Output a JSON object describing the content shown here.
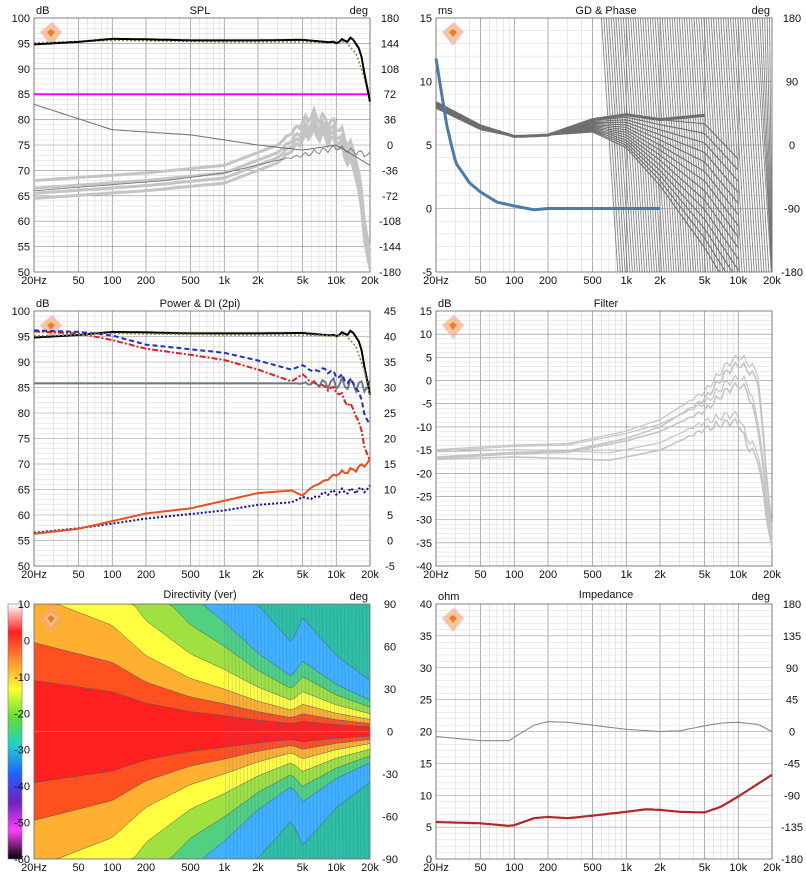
{
  "colors": {
    "grid_major": "#8c8c8c",
    "grid_minor": "#d7d7d7",
    "frame": "#6f6f6f",
    "black": "#000000",
    "olive_dotted": "#8a8a3a",
    "magenta": "#ff00ff",
    "gray_dark": "#6e6e6e",
    "gray_light": "#c4c4c4",
    "blue_gd": "#4a7cab",
    "blue_dash": "#1f2fcf",
    "red_dash": "#e02020",
    "orange": "#e85020",
    "navy_dot": "#101090",
    "slate": "#6a7890",
    "imp_red": "#b02828",
    "imp_gray": "#8a8a8a"
  },
  "freq_ticks": [
    "20Hz",
    "50",
    "100",
    "200",
    "500",
    "1k",
    "2k",
    "5k",
    "10k",
    "20k"
  ],
  "colorbar": {
    "labels": [
      "10",
      "0",
      "-10",
      "-20",
      "-30",
      "-40",
      "-50",
      "-60"
    ],
    "stops": [
      "#ffffff",
      "#ff2020",
      "#ff9030",
      "#ffff30",
      "#60e030",
      "#20d0d0",
      "#2060ff",
      "#7020c0",
      "#ff40ff",
      "#000000"
    ]
  },
  "chart_data": [
    {
      "id": "spl",
      "type": "line",
      "title": "SPL",
      "ylabel_left": "dB",
      "ylabel_right": "deg",
      "x_scale": "log",
      "xlim": [
        20,
        20000
      ],
      "ylim_left": [
        50,
        100
      ],
      "yticks_left": [
        "100",
        "95",
        "90",
        "85",
        "80",
        "75",
        "70",
        "65",
        "60",
        "55",
        "50"
      ],
      "ylim_right": [
        -180,
        180
      ],
      "yticks_right": [
        "180",
        "144",
        "108",
        "72",
        "36",
        "0",
        "-36",
        "-72",
        "-108",
        "-144",
        "-180"
      ],
      "series": [
        {
          "kind": "on-axis",
          "color": "black",
          "x": [
            20,
            50,
            100,
            200,
            500,
            1000,
            2000,
            5000,
            8000,
            10000,
            12000,
            15000,
            18000,
            20000
          ],
          "y": [
            94.8,
            95.3,
            95.9,
            95.8,
            95.6,
            95.6,
            95.6,
            95.7,
            95.3,
            95.2,
            95.7,
            95.6,
            89.5,
            82.8
          ]
        },
        {
          "kind": "reference",
          "color": "olive_dotted",
          "x": [
            20,
            100,
            1000,
            5000,
            8000,
            10000,
            12000,
            15000,
            18000,
            20000
          ],
          "y": [
            95.1,
            95.6,
            95.3,
            95.3,
            95.2,
            95.0,
            95.4,
            93.0,
            88.0,
            83.0
          ]
        },
        {
          "kind": "level",
          "color": "magenta",
          "x": [
            20,
            20000
          ],
          "y": [
            85,
            85
          ]
        }
      ]
    },
    {
      "id": "gd_phase",
      "type": "line",
      "title": "GD & Phase",
      "ylabel_left": "ms",
      "ylabel_right": "deg",
      "x_scale": "log",
      "xlim": [
        20,
        20000
      ],
      "ylim_left": [
        -5,
        15
      ],
      "yticks_left": [
        "15",
        "10",
        "5",
        "0",
        "-5"
      ],
      "ylim_right": [
        -180,
        180
      ],
      "yticks_right": [
        "180",
        "90",
        "0",
        "-90",
        "-180"
      ],
      "series": [
        {
          "kind": "group-delay",
          "color": "blue_gd",
          "x": [
            20,
            25,
            30,
            40,
            50,
            70,
            100,
            150,
            200,
            300,
            500,
            1000,
            2000
          ],
          "y": [
            11.8,
            6.5,
            3.6,
            2.0,
            1.3,
            0.5,
            0.2,
            -0.1,
            0.0,
            0.0,
            0.0,
            0.0,
            0.0
          ]
        },
        {
          "kind": "phase-cluster",
          "color": "gray_dark",
          "x": [
            20,
            50,
            100,
            200,
            500,
            1000,
            2000,
            5000
          ],
          "y": [
            60,
            27,
            12,
            14,
            36,
            43,
            36,
            42
          ]
        }
      ]
    },
    {
      "id": "power_di",
      "type": "line",
      "title": "Power & DI (2pi)",
      "ylabel_left": "dB",
      "x_scale": "log",
      "xlim": [
        20,
        20000
      ],
      "ylim_left": [
        50,
        100
      ],
      "yticks_left": [
        "100",
        "95",
        "90",
        "85",
        "80",
        "75",
        "70",
        "65",
        "60",
        "55",
        "50"
      ],
      "ylim_right": [
        -5,
        45
      ],
      "yticks_right": [
        "45",
        "40",
        "35",
        "30",
        "25",
        "20",
        "15",
        "10",
        "5",
        "0",
        "-5"
      ],
      "series": [
        {
          "kind": "on-axis",
          "color": "black",
          "x": [
            20,
            50,
            100,
            200,
            500,
            1000,
            2000,
            5000,
            8000,
            10000,
            12000,
            15000,
            18000,
            20000
          ],
          "y": [
            94.8,
            95.3,
            95.9,
            95.8,
            95.6,
            95.6,
            95.6,
            95.7,
            95.3,
            95.2,
            95.7,
            95.6,
            89.5,
            82.8
          ]
        },
        {
          "kind": "listening-window",
          "color": "blue_dash",
          "x": [
            20,
            50,
            100,
            200,
            500,
            1000,
            2000,
            4000,
            5000,
            6000,
            8000,
            10000,
            15000,
            20000
          ],
          "y": [
            96.2,
            95.9,
            95.2,
            93.4,
            92.5,
            91.8,
            90.3,
            88.5,
            89.4,
            88.3,
            88.5,
            87.5,
            85.5,
            77.0
          ]
        },
        {
          "kind": "sound-power",
          "color": "red_dash",
          "x": [
            20,
            50,
            100,
            200,
            500,
            1000,
            2000,
            4000,
            5000,
            6000,
            8000,
            10000,
            15000,
            20000
          ],
          "y": [
            96.0,
            95.6,
            94.3,
            92.6,
            91.4,
            90.4,
            88.5,
            86.2,
            87.6,
            86.0,
            85.0,
            84.5,
            80.0,
            70.0
          ]
        },
        {
          "kind": "reference-31",
          "color": "slate",
          "x": [
            20,
            5000,
            10000,
            20000
          ],
          "y": [
            30.8,
            30.8,
            30.8,
            30.2
          ]
        },
        {
          "kind": "di-listening",
          "color": "orange",
          "x": [
            20,
            50,
            100,
            200,
            500,
            1000,
            2000,
            4000,
            5000,
            6000,
            8000,
            10000,
            15000,
            20000
          ],
          "y": [
            1.3,
            2.3,
            3.8,
            5.3,
            6.3,
            7.8,
            9.3,
            9.8,
            8.8,
            10.4,
            11.8,
            13.0,
            14.0,
            15.5
          ]
        },
        {
          "kind": "di-power",
          "color": "navy_dot",
          "x": [
            20,
            50,
            100,
            200,
            500,
            1000,
            2000,
            4000,
            5000,
            6000,
            8000,
            10000,
            15000,
            20000
          ],
          "y": [
            1.5,
            2.4,
            3.3,
            4.3,
            5.2,
            5.9,
            7.0,
            7.5,
            8.5,
            8.2,
            9.3,
            9.5,
            9.8,
            10.2
          ]
        }
      ]
    },
    {
      "id": "filter",
      "type": "line",
      "title": "Filter",
      "ylabel_left": "dB",
      "x_scale": "log",
      "xlim": [
        20,
        20000
      ],
      "ylim_left": [
        -40,
        15
      ],
      "yticks_left": [
        "15",
        "10",
        "5",
        "0",
        "-5",
        "-10",
        "-15",
        "-20",
        "-25",
        "-30",
        "-35",
        "-40"
      ],
      "series": [
        {
          "kind": "filter-a",
          "color": "gray_light",
          "x": [
            20,
            100,
            300,
            1000,
            2000,
            5000,
            8000,
            10000,
            12000,
            15000,
            20000
          ],
          "y": [
            -16.5,
            -15.5,
            -15.2,
            -12.5,
            -10.0,
            -4.0,
            2.0,
            3.5,
            2.5,
            0.0,
            -34.0
          ]
        },
        {
          "kind": "filter-b",
          "color": "gray_light",
          "x": [
            20,
            100,
            300,
            1000,
            2000,
            5000,
            8000,
            10000,
            12000,
            15000,
            20000
          ],
          "y": [
            -16.8,
            -15.8,
            -15.5,
            -13.0,
            -11.0,
            -6.5,
            -2.0,
            -1.0,
            -2.0,
            -10.0,
            -36.0
          ]
        },
        {
          "kind": "filter-c",
          "color": "gray_light",
          "x": [
            20,
            100,
            300,
            700,
            1000,
            2000,
            5000,
            8000,
            10000,
            12000,
            15000,
            20000
          ],
          "y": [
            -17.0,
            -16.5,
            -16.8,
            -17.2,
            -16.5,
            -15.0,
            -10.5,
            -9.0,
            -9.0,
            -14.0,
            -17.0,
            -37.0
          ]
        }
      ]
    },
    {
      "id": "directivity",
      "type": "heatmap",
      "title": "Directivity (ver)",
      "ylabel_right": "deg",
      "x_scale": "log",
      "xlim": [
        20,
        20000
      ],
      "ylim_right": [
        -90,
        90
      ],
      "yticks_right": [
        "90",
        "60",
        "30",
        "0",
        "-30",
        "-60",
        "-90"
      ],
      "zlim": [
        -60,
        10
      ],
      "contours": [
        -6,
        -12,
        -18,
        -24,
        -30
      ],
      "beamwidth_x": [
        20,
        100,
        200,
        500,
        1000,
        2000,
        4000,
        5000,
        10000,
        20000
      ],
      "beamwidth_deg": [
        90,
        70,
        50,
        35,
        28,
        20,
        14,
        18,
        12,
        8
      ]
    },
    {
      "id": "impedance",
      "type": "line",
      "title": "Impedance",
      "ylabel_left": "ohm",
      "ylabel_right": "deg",
      "x_scale": "log",
      "xlim": [
        20,
        20000
      ],
      "ylim_left": [
        0,
        40
      ],
      "yticks_left": [
        "40",
        "35",
        "30",
        "25",
        "20",
        "15",
        "10",
        "5",
        "0"
      ],
      "ylim_right": [
        -180,
        180
      ],
      "yticks_right": [
        "180",
        "135",
        "90",
        "45",
        "0",
        "-45",
        "-90",
        "-135",
        "-180"
      ],
      "series": [
        {
          "kind": "magnitude",
          "color": "imp_red",
          "x": [
            20,
            50,
            90,
            100,
            150,
            200,
            300,
            500,
            1000,
            1500,
            2000,
            3000,
            5000,
            7000,
            10000,
            15000,
            20000
          ],
          "y": [
            5.8,
            5.6,
            5.2,
            5.3,
            6.4,
            6.6,
            6.4,
            6.8,
            7.4,
            7.8,
            7.7,
            7.4,
            7.3,
            8.2,
            9.8,
            11.8,
            13.2
          ]
        },
        {
          "kind": "phase",
          "color": "imp_gray",
          "x": [
            20,
            50,
            90,
            100,
            150,
            200,
            300,
            500,
            1000,
            2000,
            3000,
            5000,
            7000,
            10000,
            15000,
            20000
          ],
          "y": [
            -7,
            -13,
            -13,
            -8,
            9,
            14,
            13,
            9,
            3,
            0,
            1,
            8,
            12,
            13,
            10,
            0
          ]
        }
      ]
    }
  ]
}
